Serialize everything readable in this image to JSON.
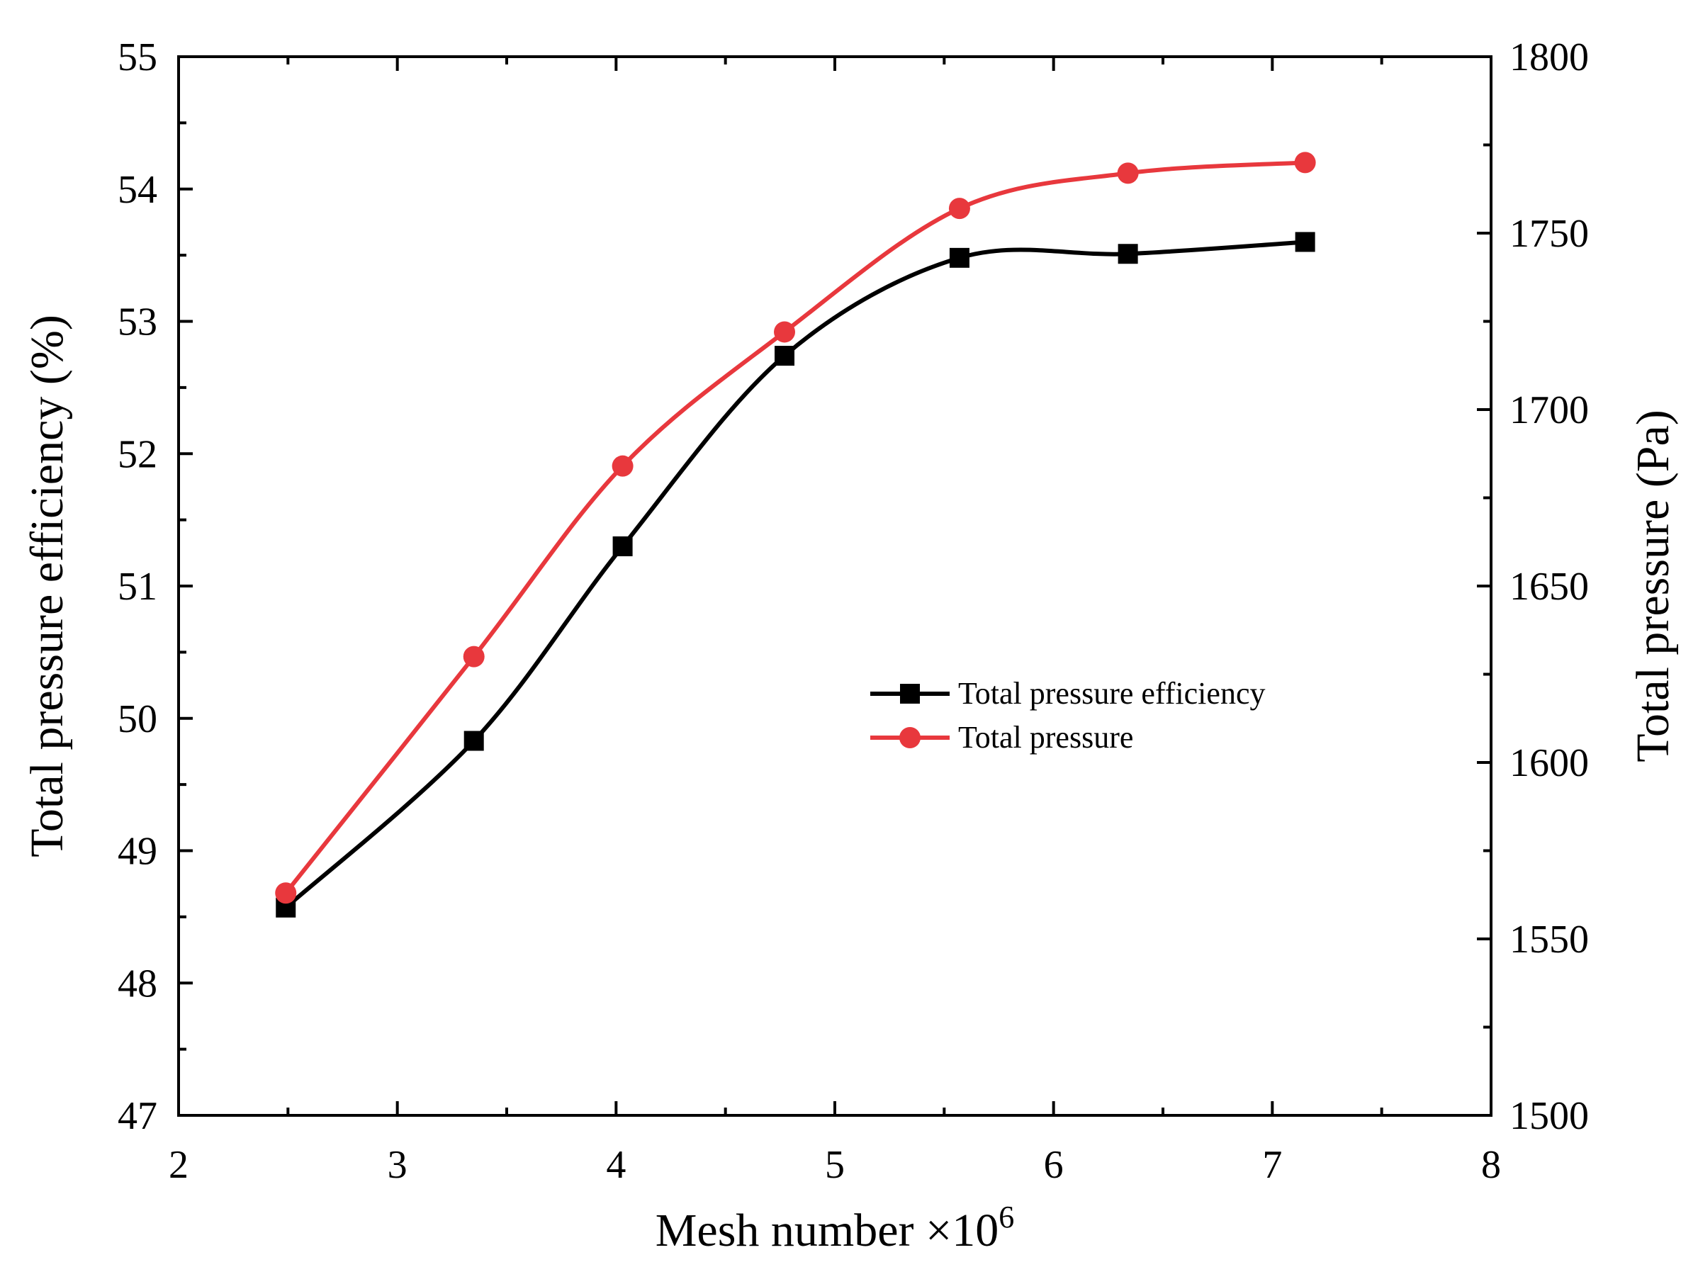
{
  "chart_data": {
    "type": "line",
    "title": "",
    "xlabel": "Mesh number ×10",
    "xlabel_superscript": "6",
    "ylabel_left": "Total pressure efficiency (%)",
    "ylabel_right": "Total pressure (Pa)",
    "xlim": [
      2,
      8
    ],
    "ylim_left": [
      47,
      55
    ],
    "ylim_right": [
      1500,
      1800
    ],
    "x_ticks": [
      2,
      3,
      4,
      5,
      6,
      7,
      8
    ],
    "y_left_ticks": [
      47,
      48,
      49,
      50,
      51,
      52,
      53,
      54,
      55
    ],
    "y_right_ticks": [
      1500,
      1550,
      1600,
      1650,
      1700,
      1750,
      1800
    ],
    "grid": false,
    "legend_position": "center-right",
    "series": [
      {
        "name": "Total pressure efficiency",
        "axis": "left",
        "marker": "square",
        "color": "#000000",
        "x": [
          2.49,
          3.35,
          4.03,
          4.77,
          5.57,
          6.34,
          7.15
        ],
        "y": [
          48.57,
          49.83,
          51.3,
          52.74,
          53.48,
          53.51,
          53.6
        ]
      },
      {
        "name": "Total pressure",
        "axis": "right",
        "marker": "circle",
        "color": "#e8383d",
        "x": [
          2.49,
          3.35,
          4.03,
          4.77,
          5.57,
          6.34,
          7.15
        ],
        "y": [
          1563,
          1630,
          1684,
          1722,
          1757,
          1767,
          1770
        ]
      }
    ]
  }
}
